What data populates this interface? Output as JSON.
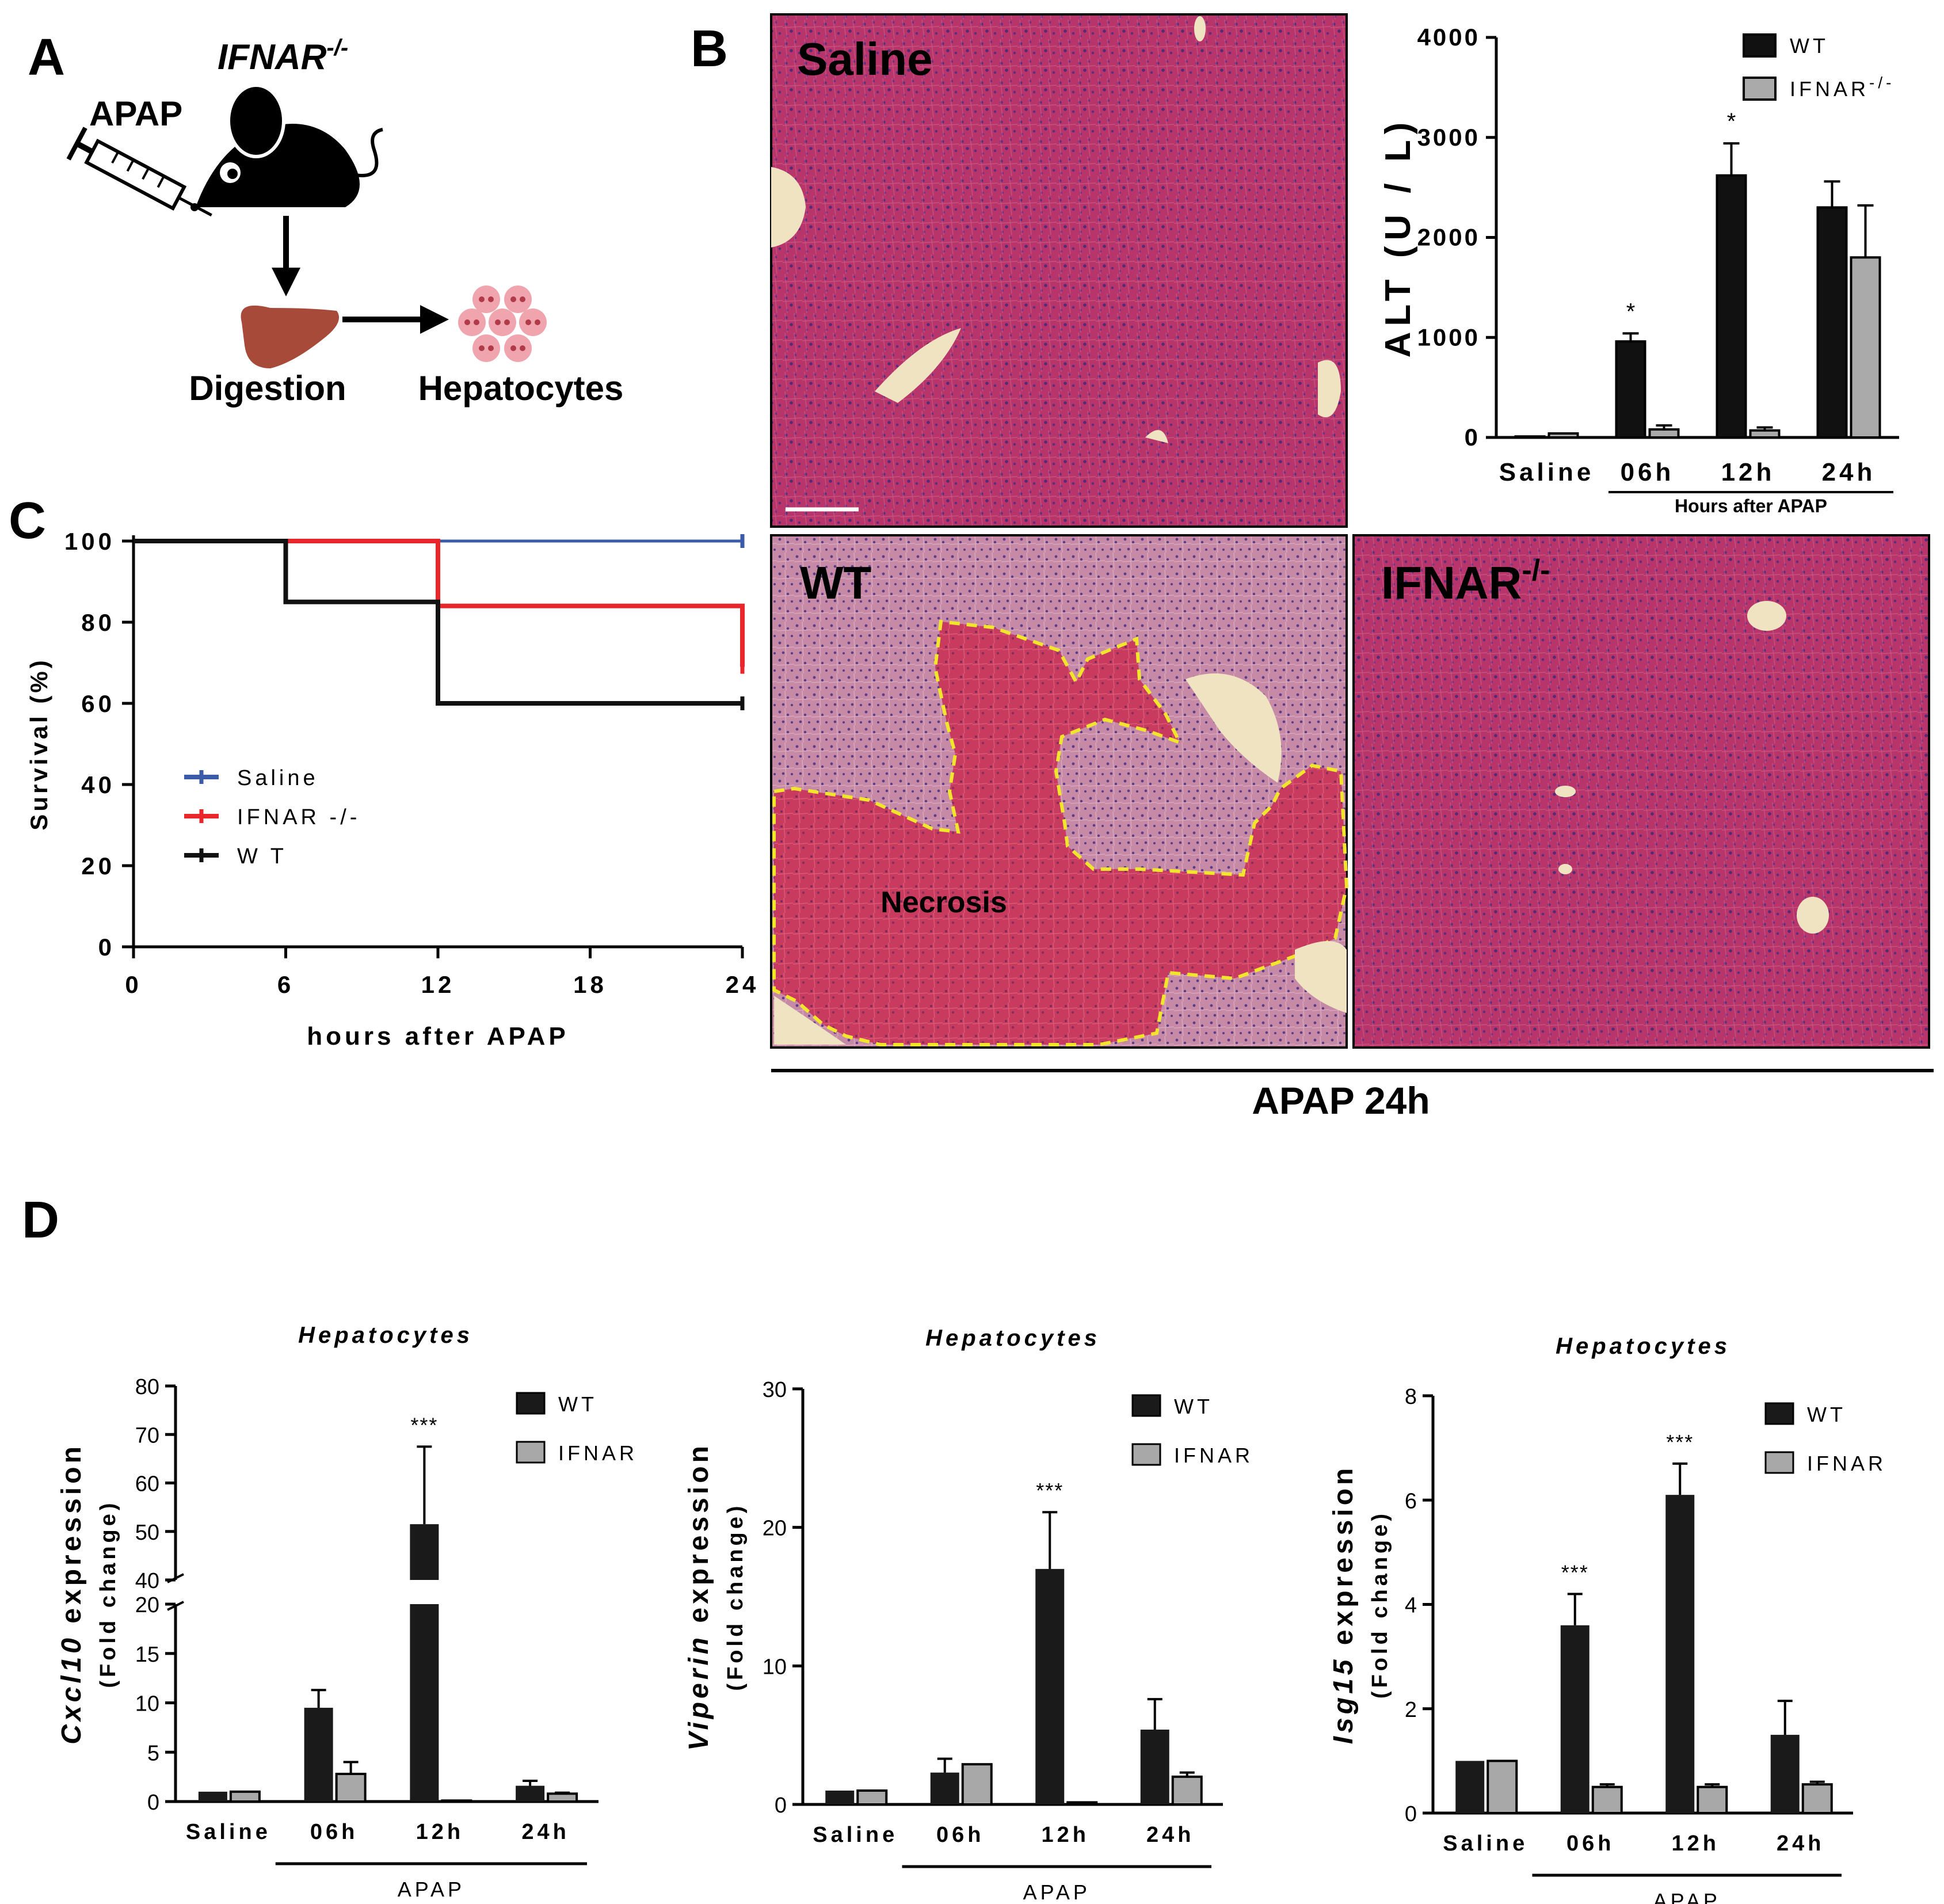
{
  "panel_labels": {
    "a": "A",
    "b": "B",
    "c": "C",
    "d": "D"
  },
  "panel_a": {
    "drug": "APAP",
    "mouse": "IFNAR",
    "mouse_sup": "-/-",
    "step1": "Digestion",
    "step2": "Hepatocytes"
  },
  "histology": {
    "saline": "Saline",
    "wt": "WT",
    "ifnar": "IFNAR",
    "ifnar_sup": "-/-",
    "necrosis": "Necrosis",
    "bottom_label": "APAP 24h"
  },
  "chart_data": [
    {
      "id": "alt",
      "type": "bar",
      "ylabel": "ALT (U / L)",
      "xgroup_label": "Hours after APAP",
      "categories": [
        "Saline",
        "06h",
        "12h",
        "24h"
      ],
      "ylim": [
        0,
        4000
      ],
      "yticks": [
        0,
        1000,
        2000,
        3000,
        4000
      ],
      "series": [
        {
          "name": "WT",
          "color": "#111111",
          "values": [
            10,
            960,
            2620,
            2300
          ],
          "errors": [
            0,
            80,
            320,
            260
          ]
        },
        {
          "name": "IFNAR",
          "name_sup": "-/-",
          "color": "#aaaaaa",
          "values": [
            40,
            80,
            70,
            1800
          ],
          "errors": [
            0,
            40,
            30,
            520
          ]
        }
      ],
      "significance": [
        "",
        "*",
        "*",
        ""
      ]
    },
    {
      "id": "survival",
      "type": "line",
      "xlabel": "hours after APAP",
      "ylabel": "Survival (%)",
      "xlim": [
        0,
        24
      ],
      "ylim": [
        0,
        100
      ],
      "xticks": [
        0,
        6,
        12,
        18,
        24
      ],
      "yticks": [
        0,
        20,
        40,
        60,
        80,
        100
      ],
      "series": [
        {
          "name": "Saline",
          "color": "#3a5ba8",
          "steps": [
            [
              0,
              100
            ],
            [
              24,
              100
            ]
          ]
        },
        {
          "name": "IFNAR -/-",
          "color": "#e8262b",
          "steps": [
            [
              0,
              100
            ],
            [
              12,
              100
            ],
            [
              12,
              84
            ],
            [
              24,
              84
            ],
            [
              24,
              69
            ]
          ]
        },
        {
          "name": "W T",
          "color": "#111111",
          "steps": [
            [
              0,
              100
            ],
            [
              6,
              100
            ],
            [
              6,
              85
            ],
            [
              12,
              85
            ],
            [
              12,
              60
            ],
            [
              24,
              60
            ]
          ]
        }
      ]
    },
    {
      "id": "cxcl10",
      "type": "bar",
      "title": "Hepatocytes",
      "ylabel_gene": "Cxcl10",
      "ylabel_rest": " expression",
      "ylabel2": "(Fold change)",
      "group_label": "APAP",
      "categories": [
        "Saline",
        "06h",
        "12h",
        "24h"
      ],
      "broken_axis": true,
      "lower_range": [
        0,
        20
      ],
      "upper_range": [
        40,
        80
      ],
      "lower_ticks": [
        0,
        5,
        10,
        15,
        20
      ],
      "upper_ticks": [
        40,
        50,
        60,
        70,
        80
      ],
      "series": [
        {
          "name": "WT",
          "color": "#1a1a1a",
          "values": [
            1,
            9.5,
            51.5,
            1.6
          ],
          "errors": [
            0,
            1.8,
            16,
            0.5
          ]
        },
        {
          "name": "IFNAR",
          "color": "#a8a8a8",
          "values": [
            1,
            2.8,
            0.1,
            0.8
          ],
          "errors": [
            0,
            1.2,
            0,
            0.1
          ]
        }
      ],
      "significance": [
        "",
        "",
        "***",
        ""
      ]
    },
    {
      "id": "viperin",
      "type": "bar",
      "title": "Hepatocytes",
      "ylabel_gene": "Viperin",
      "ylabel_rest": " expression",
      "ylabel2": "(Fold change)",
      "group_label": "APAP",
      "categories": [
        "Saline",
        "06h",
        "12h",
        "24h"
      ],
      "ylim": [
        0,
        30
      ],
      "yticks": [
        0,
        10,
        20,
        30
      ],
      "series": [
        {
          "name": "WT",
          "color": "#1a1a1a",
          "values": [
            1,
            2.3,
            17,
            5.4
          ],
          "errors": [
            0,
            1,
            4.1,
            2.2
          ]
        },
        {
          "name": "IFNAR",
          "color": "#a8a8a8",
          "values": [
            1,
            2.9,
            0.15,
            2
          ],
          "errors": [
            0,
            0,
            0,
            0.3
          ]
        }
      ],
      "significance": [
        "",
        "",
        "***",
        ""
      ]
    },
    {
      "id": "isg15",
      "type": "bar",
      "title": "Hepatocytes",
      "ylabel_gene": "Isg15",
      "ylabel_rest": " expression",
      "ylabel2": "(Fold change)",
      "group_label": "APAP",
      "categories": [
        "Saline",
        "06h",
        "12h",
        "24h"
      ],
      "ylim": [
        0,
        8
      ],
      "yticks": [
        0,
        2,
        4,
        6,
        8
      ],
      "series": [
        {
          "name": "WT",
          "color": "#1a1a1a",
          "values": [
            1,
            3.6,
            6.1,
            1.5
          ],
          "errors": [
            0,
            0.6,
            0.6,
            0.65
          ]
        },
        {
          "name": "IFNAR",
          "color": "#a8a8a8",
          "values": [
            1,
            0.5,
            0.5,
            0.55
          ],
          "errors": [
            0,
            0.05,
            0.05,
            0.05
          ]
        }
      ],
      "significance": [
        "",
        "***",
        "***",
        ""
      ]
    }
  ]
}
